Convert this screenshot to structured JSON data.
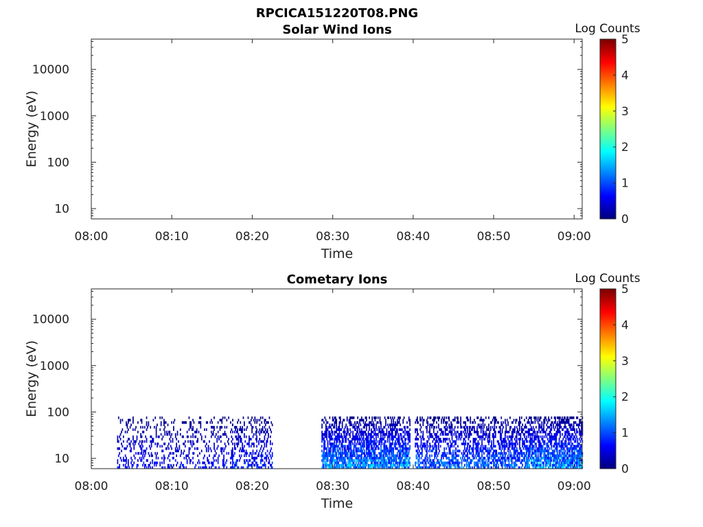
{
  "figure_title": "RPCICA151220T08.PNG",
  "chart_data": [
    {
      "type": "heatmap",
      "title": "Solar Wind Ions",
      "xlabel": "Time",
      "ylabel": "Energy (eV)",
      "x_ticks": [
        "08:00",
        "08:10",
        "08:20",
        "08:30",
        "08:40",
        "08:50",
        "09:00"
      ],
      "x_range_minutes": [
        0,
        61
      ],
      "y_scale": "log",
      "y_ticks": [
        "10",
        "100",
        "1000",
        "10000"
      ],
      "y_tick_values": [
        10,
        100,
        1000,
        10000
      ],
      "y_range": [
        6,
        45000
      ],
      "colorbar": {
        "label": "Log Counts",
        "ticks": [
          "0",
          "1",
          "2",
          "3",
          "4",
          "5"
        ],
        "range": [
          0,
          5
        ],
        "colormap": "jet"
      },
      "segments": []
    },
    {
      "type": "heatmap",
      "title": "Cometary Ions",
      "xlabel": "Time",
      "ylabel": "Energy (eV)",
      "x_ticks": [
        "08:00",
        "08:10",
        "08:20",
        "08:30",
        "08:40",
        "08:50",
        "09:00"
      ],
      "x_range_minutes": [
        0,
        61
      ],
      "y_scale": "log",
      "y_ticks": [
        "10",
        "100",
        "1000",
        "10000"
      ],
      "y_tick_values": [
        10,
        100,
        1000,
        10000
      ],
      "y_range": [
        6,
        45000
      ],
      "colorbar": {
        "label": "Log Counts",
        "ticks": [
          "0",
          "1",
          "2",
          "3",
          "4",
          "5"
        ],
        "range": [
          0,
          5
        ],
        "colormap": "jet"
      },
      "segments": [
        {
          "t_start": 3.2,
          "t_end": 17.5,
          "e_max": 80,
          "level_max": 0.9,
          "density": 0.3
        },
        {
          "t_start": 17.5,
          "t_end": 22.5,
          "e_max": 80,
          "level_max": 1.1,
          "density": 0.45
        },
        {
          "t_start": 28.6,
          "t_end": 39.6,
          "e_max": 80,
          "level_max": 1.9,
          "density": 0.85
        },
        {
          "t_start": 40.2,
          "t_end": 54.0,
          "e_max": 80,
          "level_max": 1.6,
          "density": 0.65
        },
        {
          "t_start": 54.0,
          "t_end": 61.0,
          "e_max": 80,
          "level_max": 1.9,
          "density": 0.85
        }
      ]
    }
  ]
}
